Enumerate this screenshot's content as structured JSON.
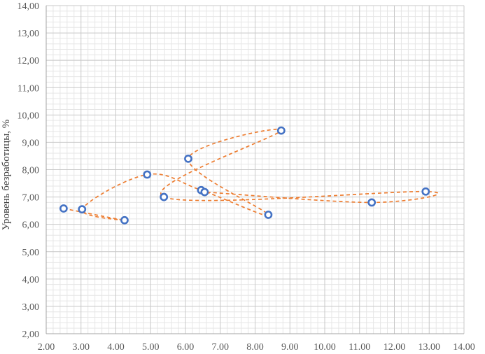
{
  "chart_data": {
    "type": "scatter",
    "title": "",
    "xlabel": "",
    "ylabel": "Уровень безработицы, %",
    "xlim": [
      2.0,
      14.0
    ],
    "ylim": [
      2.0,
      14.0
    ],
    "x_ticks": [
      "2.00",
      "3.00",
      "4.00",
      "5.00",
      "6.00",
      "7.00",
      "8.00",
      "9.00",
      "10.00",
      "11.00",
      "12.00",
      "13.00",
      "14.00"
    ],
    "y_ticks": [
      "2,00",
      "3,00",
      "4,00",
      "5,00",
      "6,00",
      "7,00",
      "8,00",
      "9,00",
      "10,00",
      "11,00",
      "12,00",
      "13,00",
      "14,00"
    ],
    "grid": "major and minor",
    "legend": "none",
    "marker_color": "#4472C4",
    "line_color": "#ED7D31",
    "line_style": "dashed smoothed connecting line",
    "points": [
      {
        "x": 2.5,
        "y": 6.58
      },
      {
        "x": 4.25,
        "y": 6.15
      },
      {
        "x": 3.03,
        "y": 6.55
      },
      {
        "x": 4.9,
        "y": 7.82
      },
      {
        "x": 6.45,
        "y": 7.25
      },
      {
        "x": 8.38,
        "y": 6.35
      },
      {
        "x": 6.08,
        "y": 8.4
      },
      {
        "x": 8.75,
        "y": 9.43
      },
      {
        "x": 5.38,
        "y": 7.0
      },
      {
        "x": 12.9,
        "y": 7.2
      },
      {
        "x": 11.35,
        "y": 6.8
      },
      {
        "x": 6.55,
        "y": 7.18
      }
    ]
  }
}
